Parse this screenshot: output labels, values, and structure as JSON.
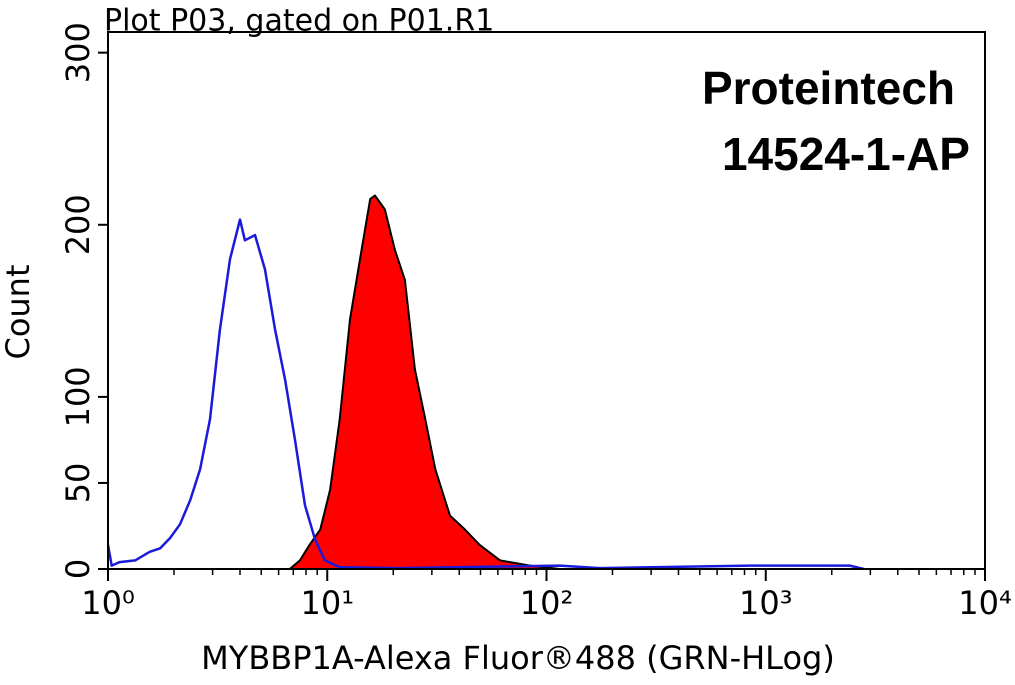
{
  "chart_data": {
    "type": "histogram-overlay",
    "title": "Plot P03, gated on P01.R1",
    "annotations": [
      "Proteintech",
      "14524-1-AP"
    ],
    "xlabel": "MYBBP1A-Alexa Fluor®488 (GRN-HLog)",
    "ylabel": "Count",
    "xscale": "log",
    "xlim": [
      1,
      10000
    ],
    "ylim": [
      0,
      312
    ],
    "xticks": [
      {
        "value": 1,
        "label": "10⁰"
      },
      {
        "value": 10,
        "label": "10¹"
      },
      {
        "value": 100,
        "label": "10²"
      },
      {
        "value": 1000,
        "label": "10³"
      },
      {
        "value": 10000,
        "label": "10⁴"
      }
    ],
    "xminorticks": [
      2,
      3,
      4,
      5,
      6,
      7,
      8,
      9,
      20,
      30,
      40,
      50,
      60,
      70,
      80,
      90,
      200,
      300,
      400,
      500,
      600,
      700,
      800,
      900,
      2000,
      3000,
      4000,
      5000,
      6000,
      7000,
      8000,
      9000
    ],
    "yticks": [
      0,
      50,
      100,
      200,
      300
    ],
    "series": [
      {
        "color": "#1a1adb",
        "filled": false,
        "x": [
          1,
          1.04,
          1.13,
          1.33,
          1.55,
          1.73,
          1.92,
          2.13,
          2.37,
          2.63,
          2.92,
          3.24,
          3.6,
          4.0,
          4.21,
          4.68,
          5.2,
          5.78,
          6.42,
          7.13,
          7.92,
          8.8,
          9.77,
          11.4,
          21.5,
          115,
          175,
          850,
          2415,
          2800
        ],
        "values": [
          14,
          2,
          4,
          5,
          10,
          12,
          18,
          26,
          40,
          58,
          87,
          139,
          180,
          203,
          191,
          194,
          174,
          139,
          110,
          75,
          37,
          17,
          5,
          1,
          0.5,
          2,
          0.5,
          2,
          2,
          0
        ]
      },
      {
        "color": "#ff0000",
        "edge_color": "#000000",
        "filled": true,
        "x": [
          6.75,
          7.5,
          8.3,
          9.3,
          10.3,
          11.4,
          12.7,
          14.1,
          15.7,
          16.5,
          18.3,
          20.4,
          22.6,
          25.1,
          28.0,
          31.1,
          36.3,
          42.4,
          49.6,
          61.4,
          84,
          115
        ],
        "values": [
          0,
          5,
          14,
          23,
          46,
          87,
          145,
          180,
          215,
          217,
          209,
          185,
          168,
          116,
          87,
          58,
          31,
          23,
          14,
          5,
          2,
          0
        ]
      }
    ]
  }
}
